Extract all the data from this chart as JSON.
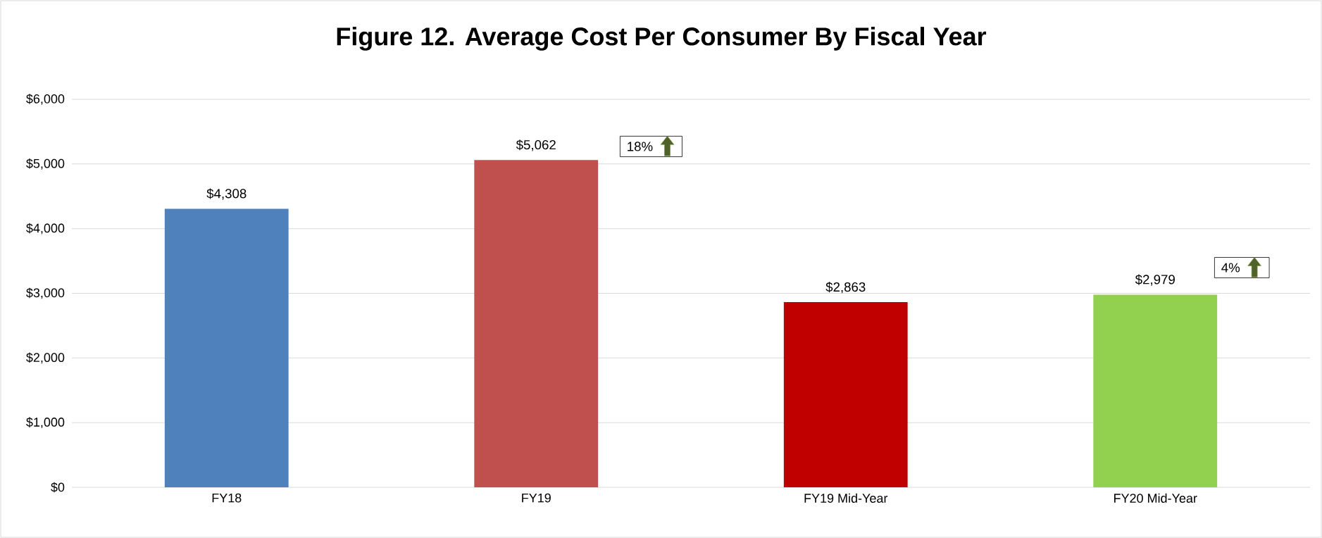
{
  "chart_data": {
    "type": "bar",
    "title": "Figure 12. Average Cost Per Consumer By Fiscal Year",
    "categories": [
      "FY18",
      "FY19",
      "FY19 Mid-Year",
      "FY20 Mid-Year"
    ],
    "values": [
      4308,
      5062,
      2863,
      2979
    ],
    "colors": [
      "#4f81bd",
      "#c0504d",
      "#c00000",
      "#92d050"
    ],
    "value_labels": [
      "$4,308",
      "$5,062",
      "$2,863",
      "$2,979"
    ],
    "ylim": [
      0,
      6000
    ],
    "yticks": [
      {
        "value": 0,
        "label": "$0"
      },
      {
        "value": 1000,
        "label": "$1,000"
      },
      {
        "value": 2000,
        "label": "$2,000"
      },
      {
        "value": 3000,
        "label": "$3,000"
      },
      {
        "value": 4000,
        "label": "$4,000"
      },
      {
        "value": 5000,
        "label": "$5,000"
      },
      {
        "value": 6000,
        "label": "$6,000"
      }
    ],
    "grid": "y",
    "annotations": [
      "18%",
      "4%"
    ]
  }
}
